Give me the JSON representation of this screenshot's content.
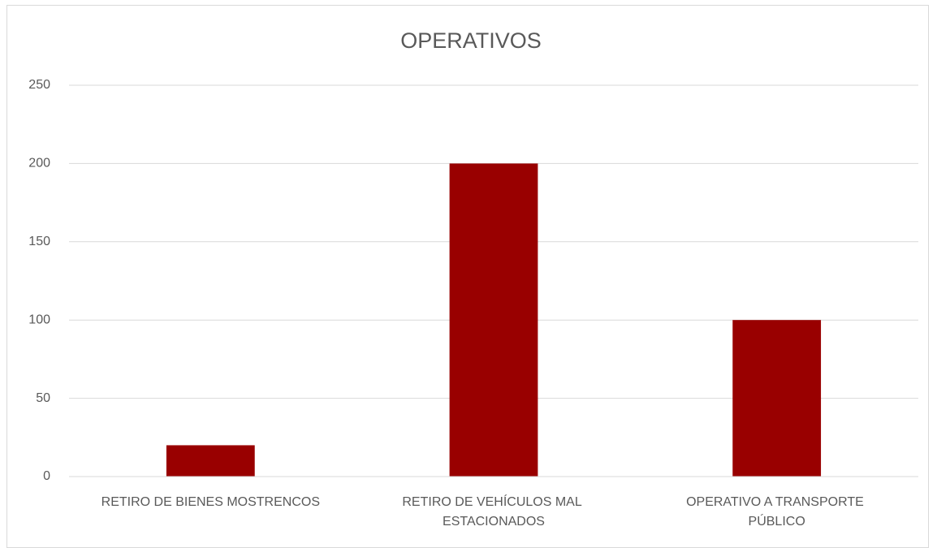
{
  "chart_data": {
    "type": "bar",
    "title": "OPERATIVOS",
    "categories": [
      "RETIRO DE BIENES MOSTRENCOS",
      "RETIRO DE VEHÍCULOS MAL ESTACIONADOS",
      "OPERATIVO A TRANSPORTE PÚBLICO"
    ],
    "values": [
      20,
      200,
      100
    ],
    "color": "#990000",
    "ylim": [
      0,
      250
    ],
    "yticks": [
      0,
      50,
      100,
      150,
      200,
      250
    ],
    "grid": true
  }
}
